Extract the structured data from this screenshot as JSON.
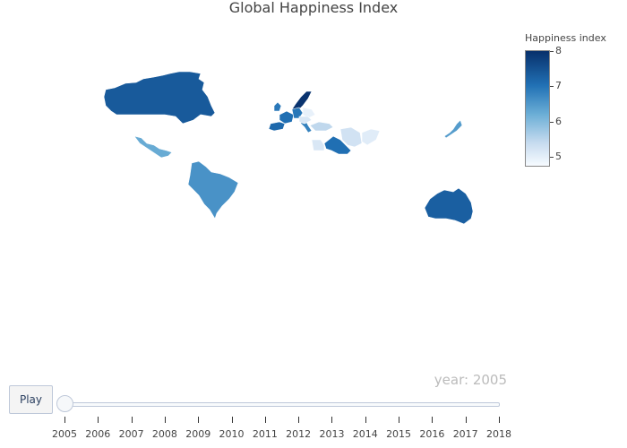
{
  "title": "Global Happiness Index",
  "colorbar": {
    "title": "Happiness index",
    "ticks": [
      "8",
      "7",
      "6",
      "5"
    ],
    "tick_values": [
      8,
      7,
      6,
      5
    ],
    "range": [
      4.8,
      8.05
    ],
    "colors": [
      "#f7fbff",
      "#c6dbef",
      "#6baed6",
      "#2171b5",
      "#08306b"
    ]
  },
  "animation": {
    "current_year_label": "year: 2005",
    "play_label": "Play",
    "years": [
      "2005",
      "2006",
      "2007",
      "2008",
      "2009",
      "2010",
      "2011",
      "2012",
      "2013",
      "2014",
      "2015",
      "2016",
      "2017",
      "2018"
    ],
    "current_index": 0
  },
  "map_data": {
    "countries": [
      {
        "name": "Canada",
        "value": 7.42
      },
      {
        "name": "Mexico",
        "value": 6.3
      },
      {
        "name": "Brazil",
        "value": 6.64
      },
      {
        "name": "Australia",
        "value": 7.34
      },
      {
        "name": "Japan",
        "value": 6.5
      },
      {
        "name": "Saudi Arabia",
        "value": 7.1
      },
      {
        "name": "Denmark",
        "value": 8.0
      },
      {
        "name": "Spain",
        "value": 7.2
      },
      {
        "name": "France",
        "value": 7.1
      },
      {
        "name": "United Kingdom",
        "value": 6.98
      },
      {
        "name": "Germany",
        "value": 7.0
      },
      {
        "name": "Italy",
        "value": 6.85
      },
      {
        "name": "Turkey",
        "value": 5.5
      },
      {
        "name": "Egypt",
        "value": 5.2
      },
      {
        "name": "Iran",
        "value": 5.3
      },
      {
        "name": "Pakistan",
        "value": 5.1
      },
      {
        "name": "Romania",
        "value": 5.0
      },
      {
        "name": "Hungary",
        "value": 5.2
      }
    ]
  }
}
